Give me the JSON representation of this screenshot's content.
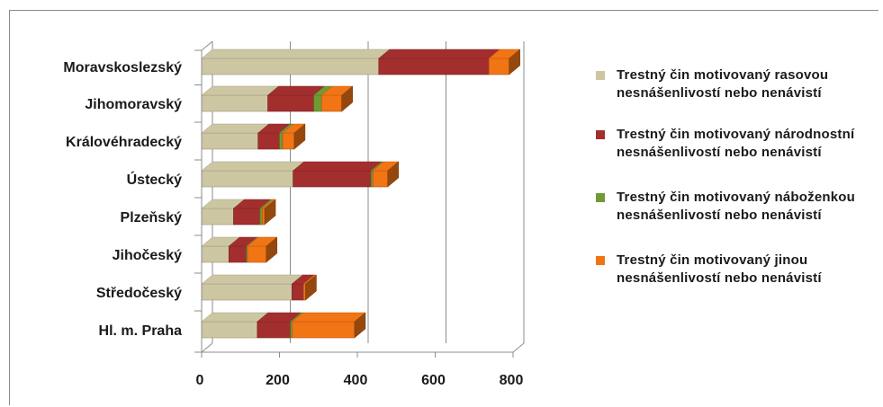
{
  "chart_data": {
    "type": "bar",
    "orientation": "horizontal",
    "stacked": true,
    "style": "3d",
    "categories": [
      "Moravskoslezský",
      "Jihomoravský",
      "Královéhradecký",
      "Ústecký",
      "Plzeňský",
      "Jihočeský",
      "Středočeský",
      "Hl. m. Praha"
    ],
    "series": [
      {
        "name": "Trestný čin motivovaný rasovou nesnášenlivostí nebo nenávistí",
        "color": "#cdc6a3",
        "values": [
          455,
          170,
          145,
          235,
          82,
          70,
          232,
          143
        ]
      },
      {
        "name": "Trestný čin motivovaný národnostní nesnášenlivostí nebo nenávistí",
        "color": "#a32e2e",
        "values": [
          283,
          118,
          55,
          200,
          68,
          45,
          30,
          85
        ]
      },
      {
        "name": "Trestný čin motivovaný náboženkou nesnášenlivostí nebo nenávistí",
        "color": "#6f9a34",
        "values": [
          0,
          20,
          8,
          5,
          6,
          3,
          0,
          5
        ]
      },
      {
        "name": "Trestný čin motivovaný jinou nesnášenlivostí nebo nenávistí",
        "color": "#f17415",
        "values": [
          52,
          52,
          30,
          38,
          6,
          48,
          5,
          160
        ]
      }
    ],
    "xlim": [
      0,
      800
    ],
    "xticks": [
      "0",
      "200",
      "400",
      "600",
      "800"
    ],
    "grid": true,
    "legend": "right"
  }
}
